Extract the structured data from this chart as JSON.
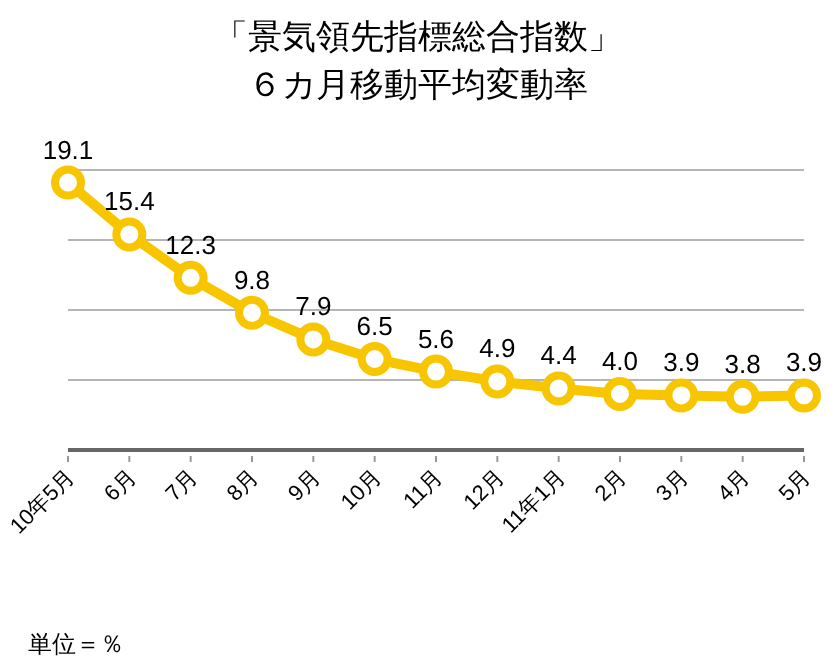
{
  "chart_data": {
    "type": "line",
    "title": "「景気領先指標総合指数」",
    "subtitle": "６カ月移動平均変動率",
    "categories": [
      "10年5月",
      "6月",
      "7月",
      "8月",
      "9月",
      "10月",
      "11月",
      "12月",
      "11年1月",
      "2月",
      "3月",
      "4月",
      "5月"
    ],
    "series": [
      {
        "color": "#f7c600",
        "values": [
          19.1,
          15.4,
          12.3,
          9.8,
          7.9,
          6.5,
          5.6,
          4.9,
          4.4,
          4.0,
          3.9,
          3.8,
          3.9
        ],
        "value_labels": [
          "19.1",
          "15.4",
          "12.3",
          "9.8",
          "7.9",
          "6.5",
          "5.6",
          "4.9",
          "4.4",
          "4.0",
          "3.9",
          "3.8",
          "3.9"
        ]
      }
    ],
    "ylim": [
      0,
      20
    ],
    "yticks": [
      {
        "value": 0,
        "label": null
      },
      {
        "value": 5,
        "label": null
      },
      {
        "value": 10,
        "label": null
      },
      {
        "value": 15,
        "label": null
      },
      {
        "value": 20,
        "label": null
      }
    ],
    "grid": "y",
    "marker": "circle",
    "line_style": "solid",
    "tick_labels": "x",
    "annotations": [
      "単位＝％"
    ]
  }
}
